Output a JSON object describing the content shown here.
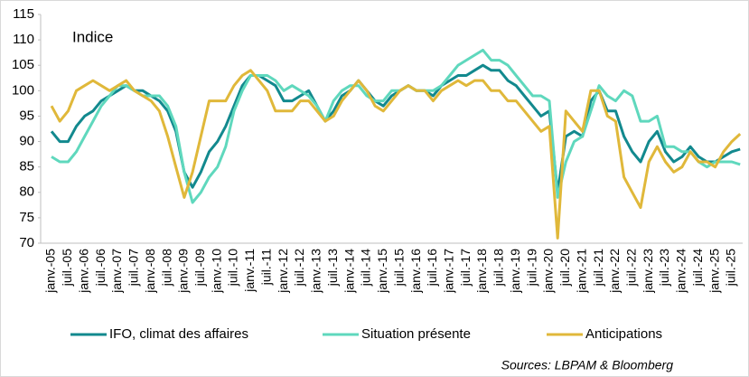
{
  "chart_data": {
    "type": "line",
    "annotation": "Indice",
    "source": "Sources: LBPAM & Bloomberg",
    "categories": [
      "janv.-05",
      null,
      "juil.-05",
      null,
      "janv.-06",
      null,
      "juil.-06",
      null,
      "janv.-07",
      null,
      "juil.-07",
      null,
      "janv.-08",
      null,
      "juil.-08",
      null,
      "janv.-09",
      null,
      "juil.-09",
      null,
      "janv.-10",
      null,
      "juil.-10",
      null,
      "janv.-11",
      null,
      "juil.-11",
      null,
      "janv.-12",
      null,
      "juil.-12",
      null,
      "janv.-13",
      null,
      "juil.-13",
      null,
      "janv.-14",
      null,
      "juil.-14",
      null,
      "janv.-15",
      null,
      "juil.-15",
      null,
      "janv.-16",
      null,
      "juil.-16",
      null,
      "janv.-17",
      null,
      "juil.-17",
      null,
      "janv.-18",
      null,
      "juil.-18",
      null,
      "janv.-19",
      null,
      "juil.-19",
      null,
      "janv.-20",
      null,
      "juil.-20",
      null,
      "janv.-21",
      null,
      "juil.-21",
      null,
      "janv.-22",
      null,
      "juil.-22",
      null,
      "janv.-23",
      null,
      "juil.-23",
      null,
      "janv.-24",
      null,
      "juil.-24",
      null,
      "janv.-25",
      null,
      "juil.-25",
      null
    ],
    "series": [
      {
        "name": "IFO, climat des affaires",
        "color": "#12898e",
        "values": [
          92,
          90,
          90,
          93,
          95,
          96,
          98,
          99,
          100,
          101,
          100,
          100,
          99,
          98,
          96,
          92,
          84,
          81,
          84,
          88,
          90,
          93,
          97,
          101,
          103,
          103,
          102,
          101,
          98,
          98,
          99,
          100,
          97,
          94,
          96,
          99,
          100,
          102,
          100,
          98,
          97,
          99,
          100,
          101,
          100,
          100,
          99,
          101,
          102,
          103,
          103,
          104,
          105,
          104,
          104,
          102,
          101,
          99,
          97,
          95,
          96,
          80,
          91,
          92,
          91,
          98,
          100,
          96,
          96,
          91,
          88,
          86,
          90,
          92,
          88,
          86,
          87,
          89,
          87,
          86,
          86,
          87,
          88,
          88.5
        ]
      },
      {
        "name": "Situation présente",
        "color": "#5fd8bd",
        "values": [
          87,
          86,
          86,
          88,
          91,
          94,
          97,
          99,
          101,
          101,
          100,
          99,
          99,
          99,
          97,
          93,
          84,
          78,
          80,
          83,
          85,
          89,
          96,
          100,
          103,
          103,
          103,
          102,
          100,
          101,
          100,
          99,
          97,
          94,
          98,
          100,
          101,
          101,
          99,
          98,
          98,
          100,
          100,
          101,
          100,
          100,
          100,
          101,
          103,
          105,
          106,
          107,
          108,
          106,
          106,
          105,
          103,
          101,
          99,
          99,
          98,
          79,
          86,
          90,
          91,
          96,
          101,
          99,
          98,
          100,
          99,
          94,
          94,
          95,
          89,
          89,
          88,
          88,
          86,
          85,
          86,
          86,
          86,
          85.5
        ]
      },
      {
        "name": "Anticipations",
        "color": "#e0b83a",
        "values": [
          97,
          94,
          96,
          100,
          101,
          102,
          101,
          100,
          101,
          102,
          100,
          99,
          98,
          96,
          91,
          85,
          79,
          84,
          91,
          98,
          98,
          98,
          101,
          103,
          104,
          102,
          100,
          96,
          96,
          96,
          98,
          98,
          96,
          94,
          95,
          98,
          100,
          102,
          100,
          97,
          96,
          98,
          100,
          101,
          100,
          100,
          98,
          100,
          101,
          102,
          101,
          102,
          102,
          100,
          100,
          98,
          98,
          96,
          94,
          92,
          93,
          71,
          96,
          94,
          92,
          100,
          100,
          95,
          94,
          83,
          80,
          77,
          86,
          89,
          86,
          84,
          85,
          88,
          86,
          86,
          85,
          88,
          90,
          91.5
        ]
      }
    ],
    "ylim": [
      70,
      115
    ],
    "yticks": [
      70,
      75,
      80,
      85,
      90,
      95,
      100,
      105,
      110,
      115
    ],
    "grid": false
  }
}
